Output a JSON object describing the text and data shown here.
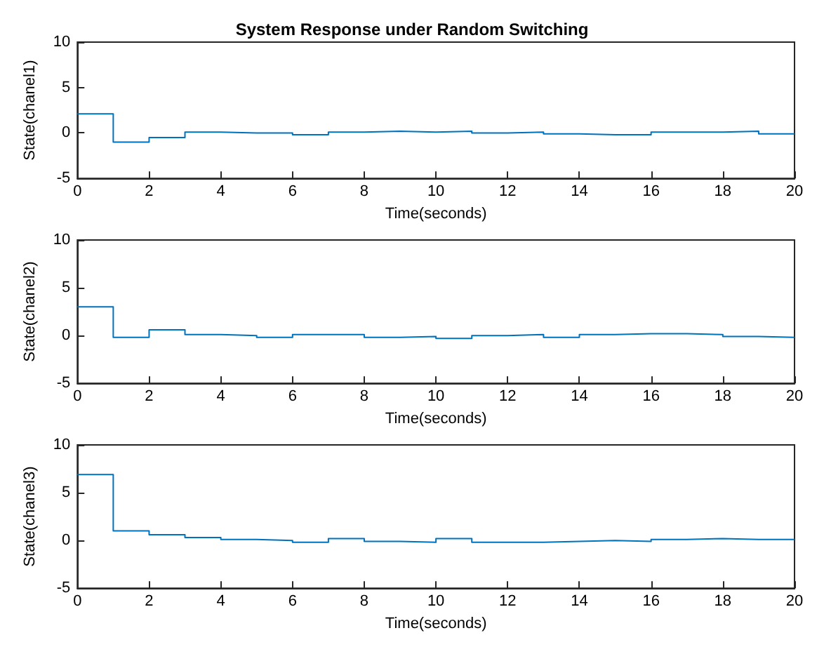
{
  "chart_data": [
    {
      "type": "step",
      "title": "System Response under Random Switching",
      "xlabel": "Time(seconds)",
      "ylabel": "State(chanel1)",
      "x": [
        0,
        1,
        2,
        3,
        4,
        5,
        6,
        7,
        8,
        9,
        10,
        11,
        12,
        13,
        14,
        15,
        16,
        17,
        18,
        19,
        20
      ],
      "series": [
        {
          "color": "#0072bd",
          "values": [
            2.1,
            -1.0,
            -0.5,
            0.1,
            0,
            0,
            -0.2,
            0.1,
            0.2,
            0.1,
            0.2,
            0,
            0.1,
            -0.1,
            -0.2,
            -0.2,
            0.1,
            0.1,
            0.2,
            -0.1,
            -0.1
          ]
        }
      ],
      "xlim": [
        0,
        20
      ],
      "xticks": [
        0,
        2,
        4,
        6,
        8,
        10,
        12,
        14,
        16,
        18,
        20
      ],
      "ylim": [
        -5,
        10
      ],
      "yticks": [
        -5,
        0,
        5,
        10
      ],
      "grid": false,
      "marker": "none",
      "line_style": "solid"
    },
    {
      "type": "step",
      "xlabel": "Time(seconds)",
      "ylabel": "State(chanel2)",
      "x": [
        0,
        1,
        2,
        3,
        4,
        5,
        6,
        7,
        8,
        9,
        10,
        11,
        12,
        13,
        14,
        15,
        16,
        17,
        18,
        19,
        20
      ],
      "series": [
        {
          "color": "#0072bd",
          "values": [
            3.0,
            -0.2,
            0.6,
            0.1,
            0,
            -0.2,
            0.1,
            0.1,
            -0.2,
            -0.1,
            -0.3,
            0,
            0.1,
            -0.2,
            0.1,
            0.2,
            0.2,
            0.1,
            -0.1,
            -0.2,
            -0.2
          ]
        }
      ],
      "xlim": [
        0,
        20
      ],
      "xticks": [
        0,
        2,
        4,
        6,
        8,
        10,
        12,
        14,
        16,
        18,
        20
      ],
      "ylim": [
        -5,
        10
      ],
      "yticks": [
        -5,
        0,
        5,
        10
      ],
      "grid": false,
      "marker": "none",
      "line_style": "solid"
    },
    {
      "type": "step",
      "xlabel": "Time(seconds)",
      "ylabel": "State(chanel3)",
      "x": [
        0,
        1,
        2,
        3,
        4,
        5,
        6,
        7,
        8,
        9,
        10,
        11,
        12,
        13,
        14,
        15,
        16,
        17,
        18,
        19,
        20
      ],
      "series": [
        {
          "color": "#0072bd",
          "values": [
            6.9,
            1.0,
            0.6,
            0.3,
            0.1,
            0,
            -0.2,
            0.2,
            -0.1,
            -0.2,
            0.2,
            -0.2,
            -0.2,
            -0.1,
            0,
            -0.1,
            0.1,
            0.2,
            0.1,
            0.1,
            0.1
          ]
        }
      ],
      "xlim": [
        0,
        20
      ],
      "xticks": [
        0,
        2,
        4,
        6,
        8,
        10,
        12,
        14,
        16,
        18,
        20
      ],
      "ylim": [
        -5,
        10
      ],
      "yticks": [
        -5,
        0,
        5,
        10
      ],
      "grid": false,
      "marker": "none",
      "line_style": "solid"
    }
  ]
}
